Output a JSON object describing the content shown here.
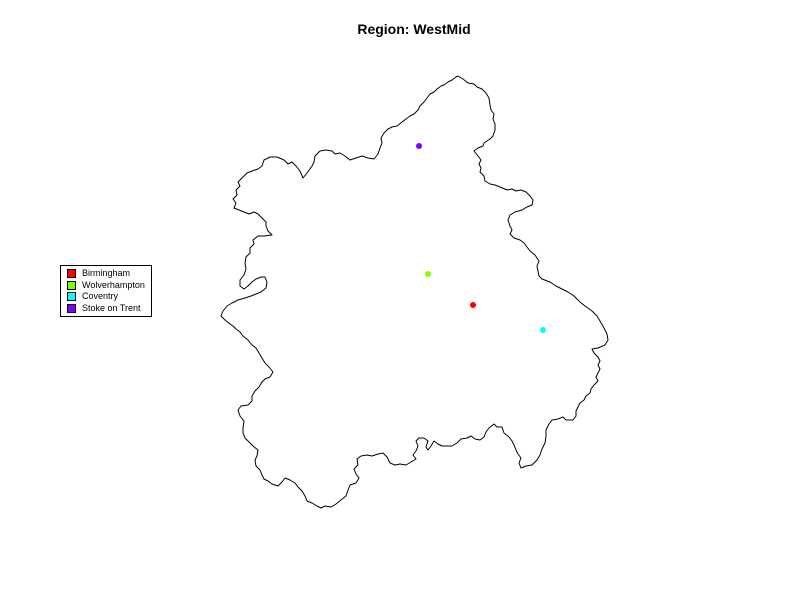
{
  "title": "Region: WestMid",
  "colors": {
    "boundary": "#000000",
    "background": "#ffffff"
  },
  "legend": {
    "placement": "left",
    "items": [
      {
        "label": "Birmingham",
        "color": "#ff0000"
      },
      {
        "label": "Wolverhampton",
        "color": "#80ff00"
      },
      {
        "label": "Coventry",
        "color": "#00ffff"
      },
      {
        "label": "Stoke on Trent",
        "color": "#8000ff"
      }
    ]
  },
  "cities": [
    {
      "name": "Birmingham",
      "color": "#ff0000"
    },
    {
      "name": "Wolverhampton",
      "color": "#80ff00"
    },
    {
      "name": "Coventry",
      "color": "#00ffff"
    },
    {
      "name": "Stoke on Trent",
      "color": "#8000ff"
    }
  ]
}
